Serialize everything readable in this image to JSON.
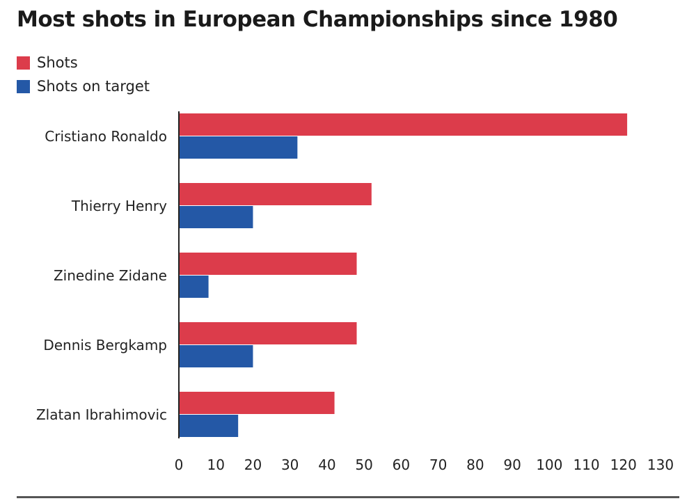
{
  "chart_data": {
    "type": "bar",
    "orientation": "horizontal",
    "title": "Most shots in European Championships since 1980",
    "categories": [
      "Cristiano Ronaldo",
      "Thierry Henry",
      "Zinedine Zidane",
      "Dennis Bergkamp",
      "Zlatan Ibrahimovic"
    ],
    "series": [
      {
        "name": "Shots",
        "color": "#dc3c4b",
        "values": [
          121,
          52,
          48,
          48,
          42
        ]
      },
      {
        "name": "Shots on target",
        "color": "#2458a6",
        "values": [
          32,
          20,
          8,
          20,
          16
        ]
      }
    ],
    "xlim": [
      0,
      130
    ],
    "xticks": [
      0,
      10,
      20,
      30,
      40,
      50,
      60,
      70,
      80,
      90,
      100,
      110,
      120,
      130
    ],
    "grid": false,
    "legend": "top-left"
  }
}
